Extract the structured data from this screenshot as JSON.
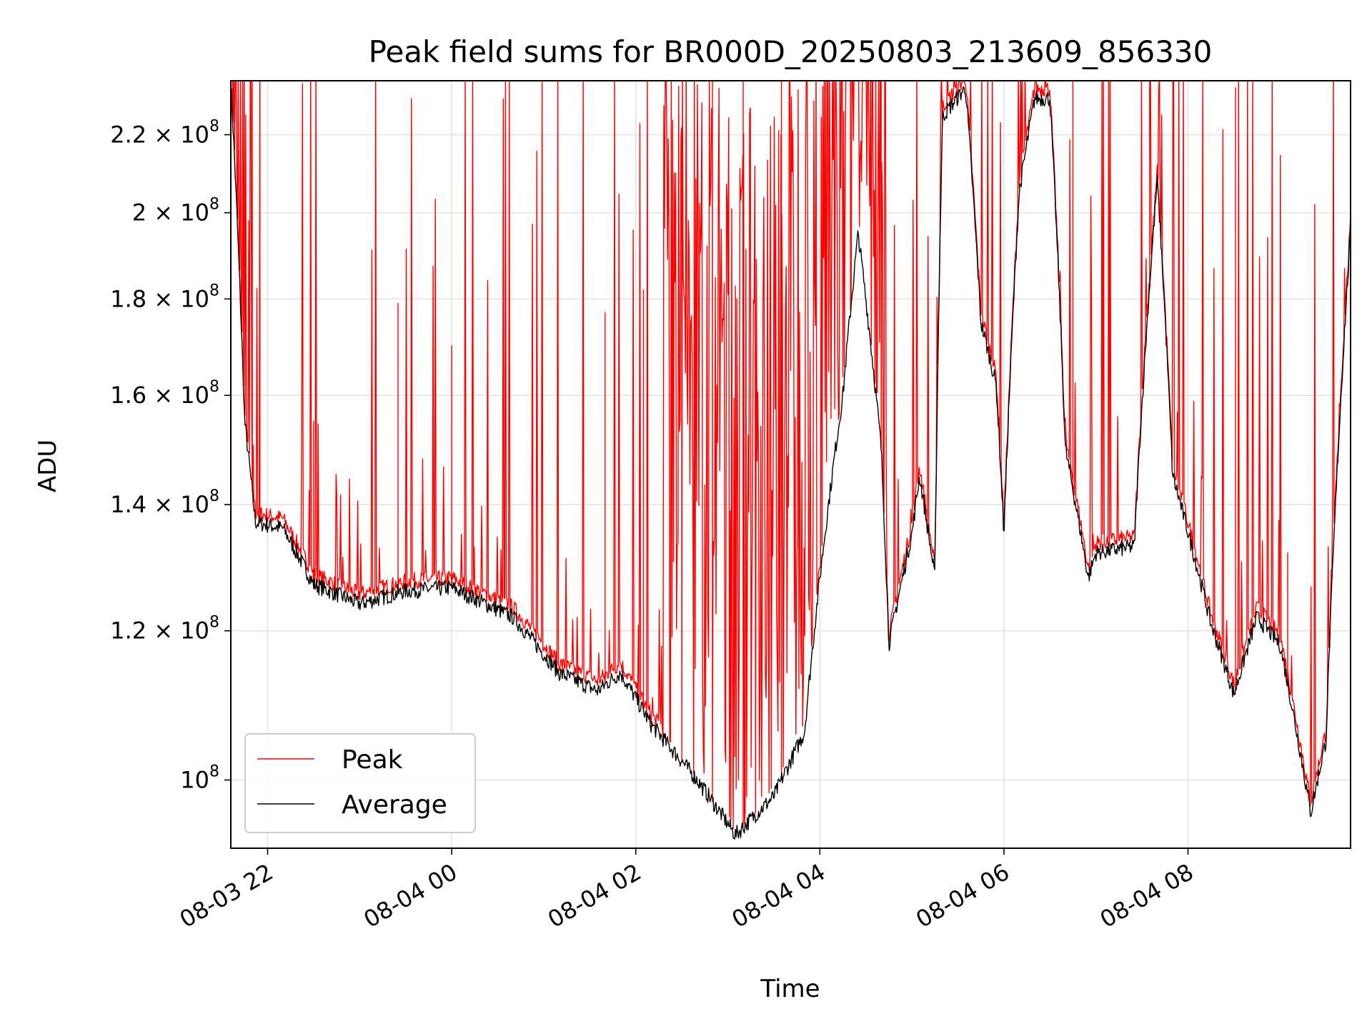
{
  "chart_data": {
    "type": "line",
    "title": "Peak field sums for BR000D_20250803_213609_856330",
    "xlabel": "Time",
    "ylabel": "ADU",
    "y_scale": "log",
    "ylim": [
      92000000,
      235000000
    ],
    "xlim": [
      "2025-08-03 21:36",
      "2025-08-04 09:46"
    ],
    "grid": true,
    "legend_position": "lower-left",
    "x_ticks": [
      {
        "label": "08-03 22",
        "t": "2025-08-03 22:00"
      },
      {
        "label": "08-04 00",
        "t": "2025-08-04 00:00"
      },
      {
        "label": "08-04 02",
        "t": "2025-08-04 02:00"
      },
      {
        "label": "08-04 04",
        "t": "2025-08-04 04:00"
      },
      {
        "label": "08-04 06",
        "t": "2025-08-04 06:00"
      },
      {
        "label": "08-04 08",
        "t": "2025-08-04 08:00"
      }
    ],
    "y_ticks": [
      {
        "mant": "10",
        "exp": "8",
        "value": 100000000
      },
      {
        "mant": "1.2 × 10",
        "exp": "8",
        "value": 120000000
      },
      {
        "mant": "1.4 × 10",
        "exp": "8",
        "value": 140000000
      },
      {
        "mant": "1.6 × 10",
        "exp": "8",
        "value": 160000000
      },
      {
        "mant": "1.8 × 10",
        "exp": "8",
        "value": 180000000
      },
      {
        "mant": "2 × 10",
        "exp": "8",
        "value": 200000000
      },
      {
        "mant": "2.2 × 10",
        "exp": "8",
        "value": 220000000
      }
    ],
    "series": [
      {
        "name": "Average",
        "color": "#000000",
        "points": [
          [
            "2025-08-03 21:36",
            235000000.0
          ],
          [
            "2025-08-03 21:45",
            155000000.0
          ],
          [
            "2025-08-03 21:52",
            137000000.0
          ],
          [
            "2025-08-03 22:10",
            136000000.0
          ],
          [
            "2025-08-03 22:30",
            127000000.0
          ],
          [
            "2025-08-03 23:00",
            124000000.0
          ],
          [
            "2025-08-03 23:30",
            126000000.0
          ],
          [
            "2025-08-04 00:00",
            126500000.0
          ],
          [
            "2025-08-04 00:40",
            122000000.0
          ],
          [
            "2025-08-04 01:10",
            114000000.0
          ],
          [
            "2025-08-04 01:35",
            111500000.0
          ],
          [
            "2025-08-04 01:50",
            114000000.0
          ],
          [
            "2025-08-04 02:10",
            107000000.0
          ],
          [
            "2025-08-04 02:40",
            100000000.0
          ],
          [
            "2025-08-04 03:05",
            93500000.0
          ],
          [
            "2025-08-04 03:30",
            98000000.0
          ],
          [
            "2025-08-04 03:50",
            106000000.0
          ],
          [
            "2025-08-04 04:00",
            128000000.0
          ],
          [
            "2025-08-04 04:15",
            160000000.0
          ],
          [
            "2025-08-04 04:25",
            195000000.0
          ],
          [
            "2025-08-04 04:40",
            150000000.0
          ],
          [
            "2025-08-04 04:45",
            118000000.0
          ],
          [
            "2025-08-04 05:00",
            135000000.0
          ],
          [
            "2025-08-04 05:05",
            145000000.0
          ],
          [
            "2025-08-04 05:15",
            128000000.0
          ],
          [
            "2025-08-04 05:20",
            225000000.0
          ],
          [
            "2025-08-04 05:35",
            233000000.0
          ],
          [
            "2025-08-04 05:45",
            175000000.0
          ],
          [
            "2025-08-04 05:55",
            162000000.0
          ],
          [
            "2025-08-04 06:00",
            135000000.0
          ],
          [
            "2025-08-04 06:10",
            205000000.0
          ],
          [
            "2025-08-04 06:20",
            230000000.0
          ],
          [
            "2025-08-04 06:30",
            230000000.0
          ],
          [
            "2025-08-04 06:40",
            150000000.0
          ],
          [
            "2025-08-04 06:55",
            128000000.0
          ],
          [
            "2025-08-04 07:00",
            132000000.0
          ],
          [
            "2025-08-04 07:25",
            133000000.0
          ],
          [
            "2025-08-04 07:40",
            208000000.0
          ],
          [
            "2025-08-04 07:50",
            145000000.0
          ],
          [
            "2025-08-04 08:15",
            121000000.0
          ],
          [
            "2025-08-04 08:30",
            111000000.0
          ],
          [
            "2025-08-04 08:45",
            122000000.0
          ],
          [
            "2025-08-04 09:00",
            118000000.0
          ],
          [
            "2025-08-04 09:20",
            96000000.0
          ],
          [
            "2025-08-04 09:30",
            105000000.0
          ],
          [
            "2025-08-04 09:46",
            195000000.0
          ]
        ]
      },
      {
        "name": "Peak",
        "color": "#ff0000",
        "spikes": [
          [
            "2025-08-03 21:50",
            235000000.0
          ],
          [
            "2025-08-03 21:55",
            235000000.0
          ],
          [
            "2025-08-03 22:30",
            155000000.0
          ],
          [
            "2025-08-03 23:25",
            179000000.0
          ],
          [
            "2025-08-04 00:00",
            170000000.0
          ],
          [
            "2025-08-04 01:40",
            177000000.0
          ],
          [
            "2025-08-04 02:05",
            182000000.0
          ],
          [
            "2025-08-04 02:30",
            220000000.0
          ],
          [
            "2025-08-04 02:50",
            235000000.0
          ],
          [
            "2025-08-04 03:10",
            235000000.0
          ],
          [
            "2025-08-04 03:35",
            235000000.0
          ],
          [
            "2025-08-04 04:20",
            235000000.0
          ],
          [
            "2025-08-04 04:40",
            235000000.0
          ],
          [
            "2025-08-04 06:45",
            235000000.0
          ],
          [
            "2025-08-04 07:35",
            233000000.0
          ],
          [
            "2025-08-04 08:31",
            233000000.0
          ],
          [
            "2025-08-04 09:05",
            132000000.0
          ]
        ]
      }
    ]
  }
}
